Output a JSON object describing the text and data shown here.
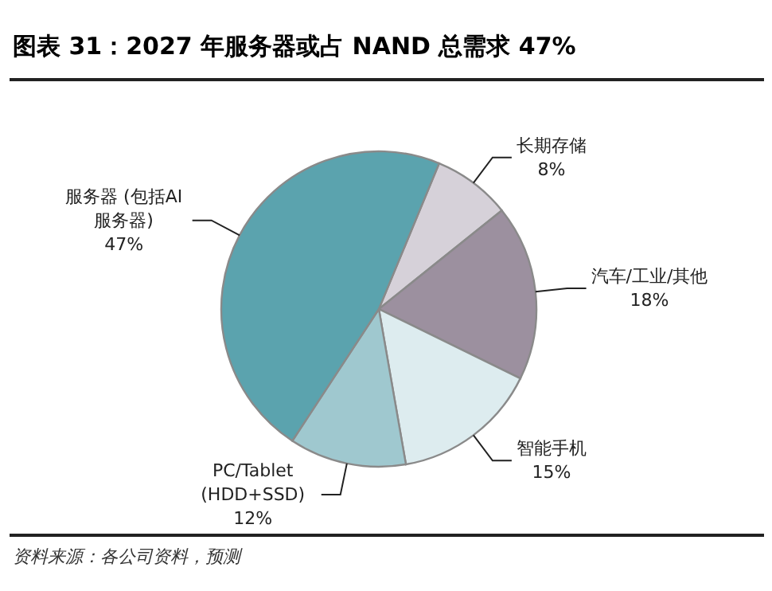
{
  "chart_data": {
    "type": "pie",
    "title": "图表 31：2027 年服务器或占 NAND 总需求 47%",
    "categories": [
      "长期存储",
      "汽车/工业/其他",
      "智能手机",
      "PC/Tablet (HDD+SSD)",
      "服务器 (包括AI服务器)"
    ],
    "values": [
      8,
      18,
      15,
      12,
      47
    ],
    "value_labels": [
      "8%",
      "18%",
      "15%",
      "12%",
      "47%"
    ],
    "colors": [
      "#d6d1d9",
      "#9c909f",
      "#ddecef",
      "#9fc8cf",
      "#5ba3ae"
    ],
    "annotations": [
      "资料来源：各公司资料，预测"
    ]
  }
}
